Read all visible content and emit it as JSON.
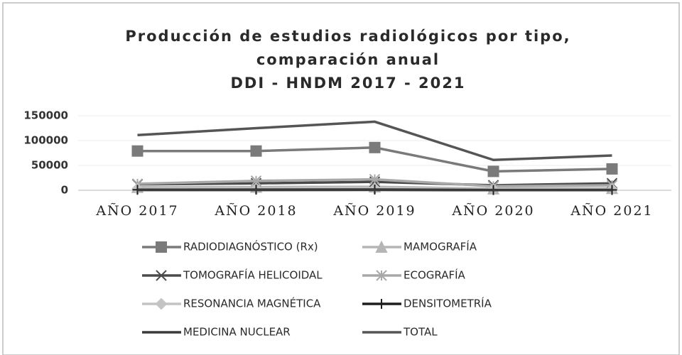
{
  "chart_data": {
    "type": "line",
    "title": [
      "Producción de estudios radiológicos por tipo,",
      "comparación anual",
      "DDI - HNDM 2017 - 2021"
    ],
    "categories": [
      "AÑO 2017",
      "AÑO 2018",
      "AÑO 2019",
      "AÑO 2020",
      "AÑO 2021"
    ],
    "ylim": [
      0,
      150000
    ],
    "yticks": [
      0,
      50000,
      100000,
      150000
    ],
    "grid": true,
    "series": [
      {
        "name": "RADIODIAGNÓSTICO (Rx)",
        "color": "#7a7a7a",
        "marker": "square",
        "values": [
          79000,
          79000,
          86000,
          38000,
          43000
        ]
      },
      {
        "name": "MAMOGRAFÍA",
        "color": "#b5b5b5",
        "marker": "triangle",
        "values": [
          6000,
          6500,
          7000,
          3000,
          4000
        ]
      },
      {
        "name": "TOMOGRAFÍA HELICOIDAL",
        "color": "#4a4a4a",
        "marker": "x",
        "values": [
          12000,
          14000,
          17000,
          10000,
          14000
        ]
      },
      {
        "name": "ECOGRAFÍA",
        "color": "#a8a8a8",
        "marker": "star",
        "values": [
          13000,
          19000,
          22000,
          8000,
          10000
        ]
      },
      {
        "name": "RESONANCIA MAGNÉTICA",
        "color": "#c4c4c4",
        "marker": "diamond",
        "values": [
          3000,
          3500,
          4000,
          2000,
          2500
        ]
      },
      {
        "name": "DENSITOMETRÍA",
        "color": "#1e1e1e",
        "marker": "plus",
        "values": [
          1000,
          1200,
          1500,
          500,
          800
        ]
      },
      {
        "name": "MEDICINA NUCLEAR",
        "color": "#3a3a3a",
        "marker": "none",
        "values": [
          500,
          600,
          700,
          300,
          400
        ]
      },
      {
        "name": "TOTAL",
        "color": "#555555",
        "marker": "none",
        "values": [
          111000,
          125000,
          138000,
          61000,
          70000
        ]
      }
    ]
  }
}
